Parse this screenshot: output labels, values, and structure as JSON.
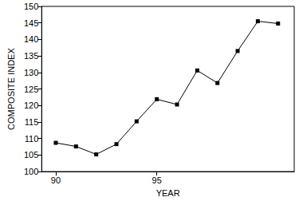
{
  "chart_data": {
    "type": "line",
    "xlabel": "YEAR",
    "ylabel": "COMPOSITE INDEX",
    "x": [
      90,
      91,
      92,
      93,
      94,
      95,
      96,
      97,
      98,
      99,
      100,
      101
    ],
    "values": [
      108.7,
      107.6,
      105.2,
      108.3,
      115.2,
      121.9,
      120.3,
      130.6,
      126.8,
      136.5,
      145.5,
      144.8
    ],
    "color": "#000000",
    "marker": "square",
    "xlim": [
      89.3,
      101.8
    ],
    "xticks": [
      90,
      95
    ],
    "ylim": [
      100,
      150
    ],
    "yticks": [
      100,
      105,
      110,
      115,
      120,
      125,
      130,
      135,
      140,
      145,
      150
    ],
    "grid": false
  }
}
